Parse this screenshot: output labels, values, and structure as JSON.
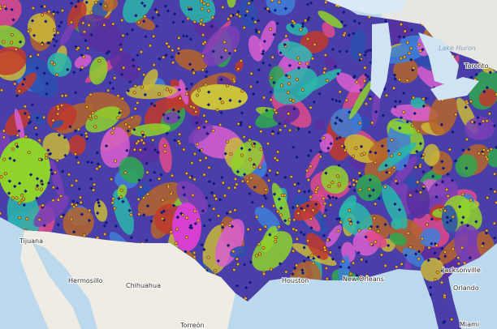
{
  "map": {
    "labels": [
      "Lake Huron",
      "Toronto",
      "Tijuana",
      "Hermosillo",
      "Chihuahua",
      "Houston",
      "New Orleans",
      "Jacksonville",
      "Torreón",
      "Miami",
      "Orlando"
    ]
  }
}
